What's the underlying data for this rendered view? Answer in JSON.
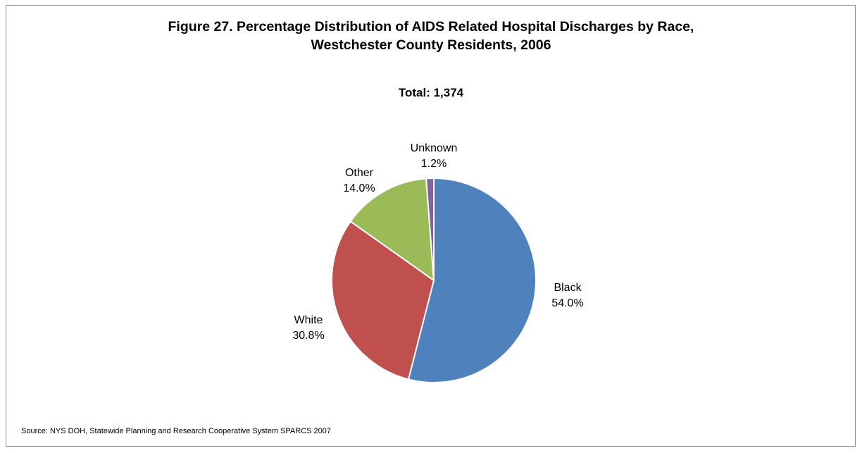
{
  "chart_data": {
    "type": "pie",
    "title": "Figure 27. Percentage Distribution of AIDS Related Hospital Discharges by Race,\nWestchester County Residents, 2006",
    "subtitle": "Total: 1,374",
    "slices": [
      {
        "label": "Black",
        "value": 54.0,
        "display": "54.0%",
        "color": "#4f81bd"
      },
      {
        "label": "White",
        "value": 30.8,
        "display": "30.8%",
        "color": "#c0504d"
      },
      {
        "label": "Other",
        "value": 14.0,
        "display": "14.0%",
        "color": "#9bbb59"
      },
      {
        "label": "Unknown",
        "value": 1.2,
        "display": "1.2%",
        "color": "#8064a2"
      }
    ],
    "start_angle": "12 o'clock",
    "direction": "clockwise",
    "legend": "none",
    "data_labels": "outside"
  },
  "source": "Source: NYS DOH, Statewide Planning and Research Cooperative System SPARCS 2007"
}
